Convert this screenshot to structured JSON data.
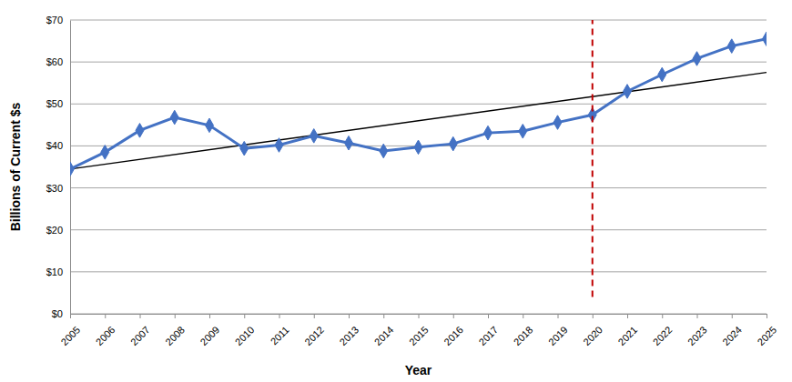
{
  "chart_data": {
    "type": "line",
    "x_label": "Year",
    "y_label": "Billions of Current $s",
    "x": [
      2005,
      2006,
      2007,
      2008,
      2009,
      2010,
      2011,
      2012,
      2013,
      2014,
      2015,
      2016,
      2017,
      2018,
      2019,
      2020,
      2021,
      2022,
      2023,
      2024,
      2025
    ],
    "series": [
      {
        "color": "#4472c4",
        "marker": "diamond",
        "line_style": "solid",
        "values": [
          34.5,
          38.5,
          43.7,
          46.8,
          44.9,
          39.4,
          40.2,
          42.4,
          40.7,
          38.8,
          39.7,
          40.5,
          43.1,
          43.5,
          45.6,
          47.4,
          53.0,
          57.0,
          60.8,
          63.8,
          65.5
        ]
      },
      {
        "color": "#000000",
        "line_style": "solid",
        "x": [
          2005,
          2025
        ],
        "values": [
          34.5,
          57.5
        ]
      }
    ],
    "vline": {
      "x": 2020,
      "y": [
        4,
        70
      ],
      "color": "#c00000",
      "line_style": "dashed"
    },
    "xlim": [
      2005,
      2025
    ],
    "xticks": [
      2005,
      2006,
      2007,
      2008,
      2009,
      2010,
      2011,
      2012,
      2013,
      2014,
      2015,
      2016,
      2017,
      2018,
      2019,
      2020,
      2021,
      2022,
      2023,
      2024,
      2025
    ],
    "ylim": [
      0,
      70
    ],
    "yticks": [
      {
        "value": 0,
        "label": "$0"
      },
      {
        "value": 10,
        "label": "$10"
      },
      {
        "value": 20,
        "label": "$20"
      },
      {
        "value": 30,
        "label": "$30"
      },
      {
        "value": 40,
        "label": "$40"
      },
      {
        "value": 50,
        "label": "$50"
      },
      {
        "value": 60,
        "label": "$60"
      },
      {
        "value": 70,
        "label": "$70"
      }
    ],
    "grid": true
  }
}
